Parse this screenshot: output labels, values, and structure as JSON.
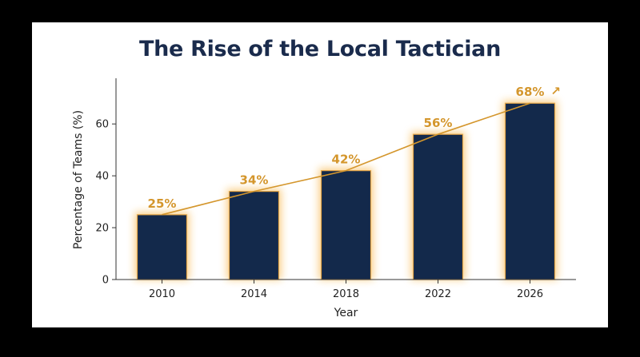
{
  "chart_data": {
    "type": "bar",
    "title": "The Rise of the Local Tactician",
    "xlabel": "Year",
    "ylabel": "Percentage of Teams (%)",
    "categories": [
      "2010",
      "2014",
      "2018",
      "2022",
      "2026"
    ],
    "values": [
      25,
      34,
      42,
      56,
      68
    ],
    "data_labels": [
      "25%",
      "34%",
      "42%",
      "56%",
      "68%"
    ],
    "yticks": [
      0,
      20,
      40,
      60
    ],
    "ytick_labels": [
      "0",
      "20",
      "40",
      "60"
    ],
    "ylim": [
      0,
      77
    ],
    "trend_line": true,
    "trend_arrow": "↗",
    "grid": false,
    "legend": "none",
    "colors": {
      "bar": "#13294b",
      "bar_glow": "#f5a623",
      "trend": "#d4962c",
      "label": "#d4962c",
      "title": "#1a2b4c"
    }
  }
}
